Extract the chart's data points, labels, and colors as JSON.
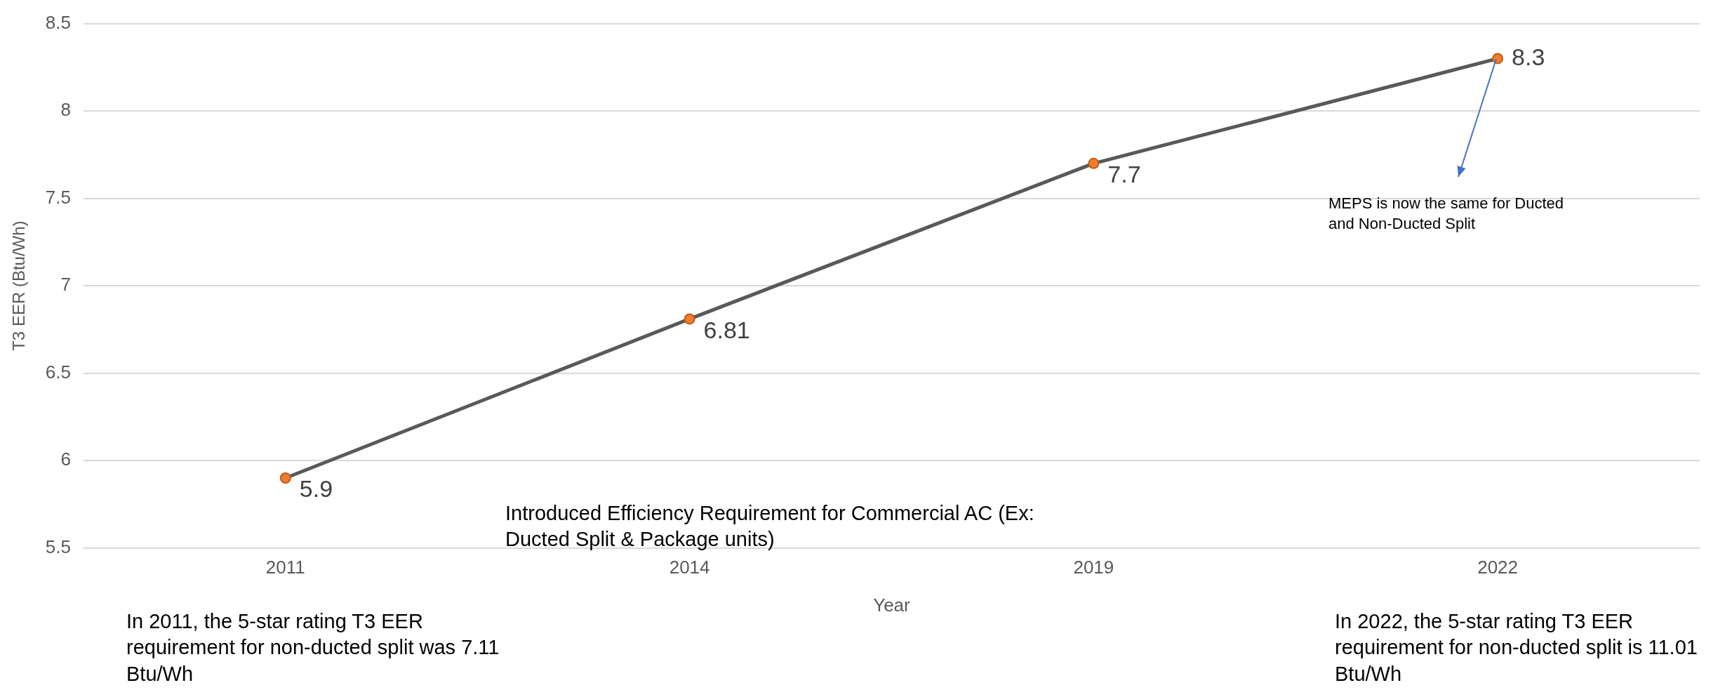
{
  "chart_data": {
    "type": "line",
    "xlabel": "Year",
    "ylabel": "T3 EER (Btu/Wh)",
    "categories": [
      "2011",
      "2014",
      "2019",
      "2022"
    ],
    "series": [
      {
        "color": "#595959",
        "values": [
          5.9,
          6.81,
          7.7,
          8.3
        ]
      }
    ],
    "ylim": [
      5.5,
      8.5
    ],
    "yticks": [
      5.5,
      6,
      6.5,
      7,
      7.5,
      8,
      8.5
    ],
    "grid": "y",
    "legend": false,
    "marker": "circle",
    "line_style": "solid",
    "data_labels": true,
    "annotations": [
      "MEPS is now the same for Ducted and Non-Ducted Split",
      "Introduced Efficiency Requirement for Commercial AC (Ex: Ducted Split & Package units)",
      "In 2011, the 5-star rating T3 EER requirement for non-ducted split was 7.11 Btu/Wh",
      "In 2022, the 5-star rating T3 EER requirement for non-ducted split is 11.01 Btu/Wh"
    ]
  }
}
